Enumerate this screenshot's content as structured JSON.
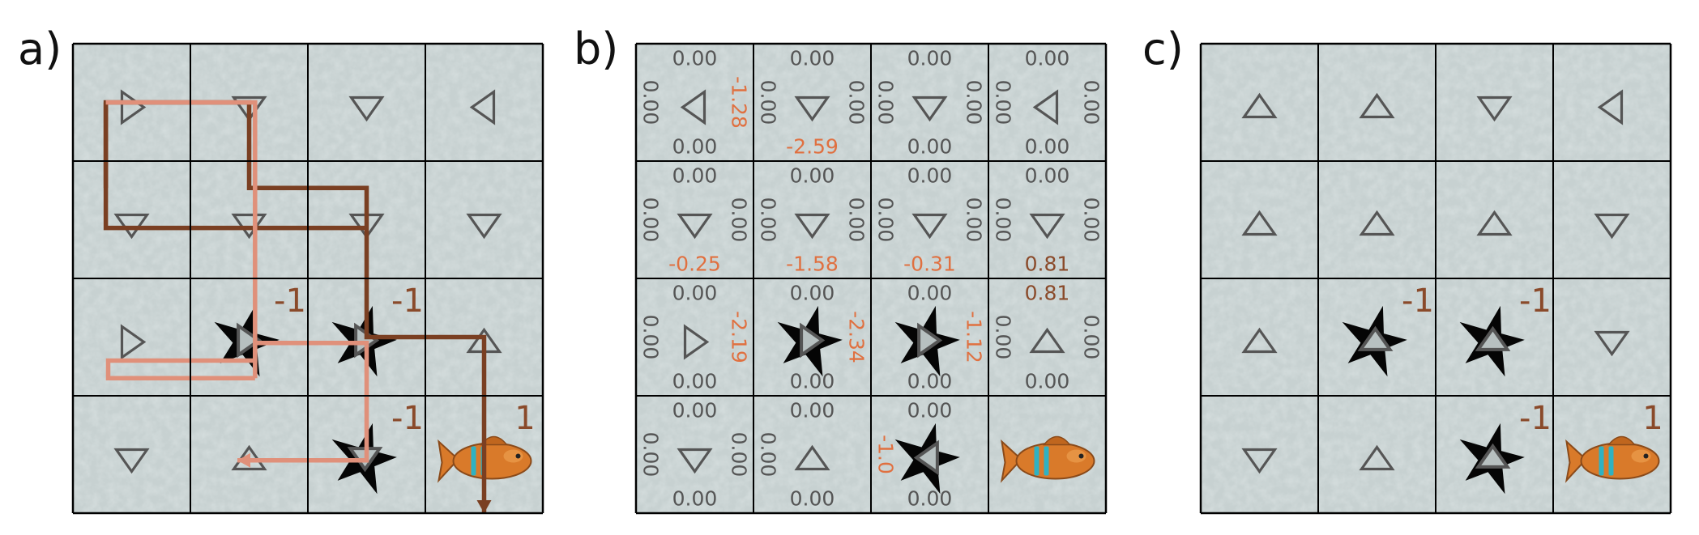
{
  "colors": {
    "ice": "#c7d1d1",
    "ice_light": "#dde4e4",
    "ice_dark": "#a9b4b4",
    "grid_line": "#000000",
    "arrow_stroke": "#555555",
    "arrow_fill": "#b7c0c0",
    "reward_text": "#8a4a2a",
    "value_zero": "#555555",
    "value_neg": "#e07040",
    "value_pos": "#8a4a2a",
    "path_dark": "#7a3f22",
    "path_light": "#e0907a",
    "path_mid": "#d88a66",
    "fish_body": "#d97a2a",
    "fish_stripe": "#2fb2c2"
  },
  "panels": [
    {
      "label": "a)",
      "cells": [
        {
          "arrow": "right"
        },
        {
          "arrow": "down"
        },
        {
          "arrow": "down"
        },
        {
          "arrow": "left"
        },
        {
          "arrow": "down"
        },
        {
          "arrow": "down"
        },
        {
          "arrow": "down"
        },
        {
          "arrow": "down"
        },
        {
          "arrow": "right"
        },
        {
          "arrow": "right",
          "hole": true,
          "reward": "-1"
        },
        {
          "arrow": "right",
          "hole": true,
          "reward": "-1"
        },
        {
          "arrow": "up"
        },
        {
          "arrow": "down"
        },
        {
          "arrow": "up"
        },
        {
          "arrow": "down",
          "hole": true,
          "reward": "-1"
        },
        {
          "goal": true,
          "reward": "1"
        }
      ],
      "paths": [
        {
          "name": "path-dark-1",
          "color": "#7a3f22",
          "points": [
            [
              1.28,
              1.23
            ],
            [
              1.28,
              0.5
            ],
            [
              2.5,
              0.5
            ],
            [
              2.5,
              1.23
            ],
            [
              3.5,
              1.23
            ],
            [
              3.5,
              2.5
            ],
            [
              4.5,
              2.5
            ],
            [
              4.5,
              4.0
            ]
          ],
          "arrow": true
        },
        {
          "name": "path-dark-2",
          "color": "#7a3f22",
          "points": [
            [
              1.28,
              0.5
            ],
            [
              1.28,
              1.57
            ],
            [
              3.5,
              1.57
            ]
          ],
          "arrow": false
        },
        {
          "name": "path-light-1",
          "color": "#e0907a",
          "points": [
            [
              1.28,
              0.5
            ],
            [
              2.55,
              0.5
            ],
            [
              2.55,
              2.7
            ],
            [
              1.3,
              2.7
            ],
            [
              1.3,
              2.85
            ],
            [
              2.55,
              2.85
            ]
          ],
          "arrow": false
        },
        {
          "name": "path-light-2",
          "color": "#e0907a",
          "points": [
            [
              2.55,
              2.85
            ],
            [
              2.55,
              2.55
            ],
            [
              3.5,
              2.55
            ],
            [
              3.5,
              3.55
            ],
            [
              2.4,
              3.55
            ]
          ],
          "arrow": true
        }
      ],
      "values": null
    },
    {
      "label": "b)",
      "cells": [
        {
          "arrow": "left"
        },
        {
          "arrow": "down"
        },
        {
          "arrow": "down"
        },
        {
          "arrow": "left"
        },
        {
          "arrow": "down"
        },
        {
          "arrow": "down"
        },
        {
          "arrow": "down"
        },
        {
          "arrow": "down"
        },
        {
          "arrow": "right"
        },
        {
          "arrow": "right",
          "hole": true
        },
        {
          "arrow": "right",
          "hole": true
        },
        {
          "arrow": "up"
        },
        {
          "arrow": "down"
        },
        {
          "arrow": "up"
        },
        {
          "arrow": "left",
          "hole": true
        },
        {
          "goal": true
        }
      ],
      "paths": [],
      "values": [
        {
          "top": "0.00",
          "right": "-1.28",
          "bottom": "0.00",
          "left": "0.00"
        },
        {
          "top": "0.00",
          "right": "0.00",
          "bottom": "-2.59",
          "left": "0.00"
        },
        {
          "top": "0.00",
          "right": "0.00",
          "bottom": "0.00",
          "left": "0.00"
        },
        {
          "top": "0.00",
          "right": "0.00",
          "bottom": "0.00",
          "left": "0.00"
        },
        {
          "top": "0.00",
          "right": "0.00",
          "bottom": "-0.25",
          "left": "0.00"
        },
        {
          "top": "0.00",
          "right": "0.00",
          "bottom": "-1.58",
          "left": "0.00"
        },
        {
          "top": "0.00",
          "right": "0.00",
          "bottom": "-0.31",
          "left": "0.00"
        },
        {
          "top": "0.00",
          "right": "0.00",
          "bottom": "0.81",
          "left": "0.00"
        },
        {
          "top": "0.00",
          "right": "-2.19",
          "bottom": "0.00",
          "left": "0.00"
        },
        {
          "top": "0.00",
          "right": "-2.34",
          "bottom": "0.00",
          "left": ""
        },
        {
          "top": "0.00",
          "right": "-1.12",
          "bottom": "0.00",
          "left": ""
        },
        {
          "top": "0.81",
          "right": "0.00",
          "bottom": "0.00",
          "left": "0.00"
        },
        {
          "top": "0.00",
          "right": "0.00",
          "bottom": "0.00",
          "left": "0.00"
        },
        {
          "top": "0.00",
          "right": "",
          "bottom": "0.00",
          "left": "0.00"
        },
        {
          "top": "0.00",
          "right": "",
          "bottom": "0.00",
          "left": "-1.0"
        },
        {
          "top": "",
          "right": "",
          "bottom": "",
          "left": ""
        }
      ]
    },
    {
      "label": "c)",
      "cells": [
        {
          "arrow": "up"
        },
        {
          "arrow": "up"
        },
        {
          "arrow": "down"
        },
        {
          "arrow": "left"
        },
        {
          "arrow": "up"
        },
        {
          "arrow": "up"
        },
        {
          "arrow": "up"
        },
        {
          "arrow": "down"
        },
        {
          "arrow": "up"
        },
        {
          "arrow": "up",
          "hole": true,
          "reward": "-1"
        },
        {
          "arrow": "up",
          "hole": true,
          "reward": "-1"
        },
        {
          "arrow": "down"
        },
        {
          "arrow": "down"
        },
        {
          "arrow": "up"
        },
        {
          "arrow": "up",
          "hole": true,
          "reward": "-1"
        },
        {
          "goal": true,
          "reward": "1"
        }
      ],
      "paths": [],
      "values": null
    }
  ]
}
